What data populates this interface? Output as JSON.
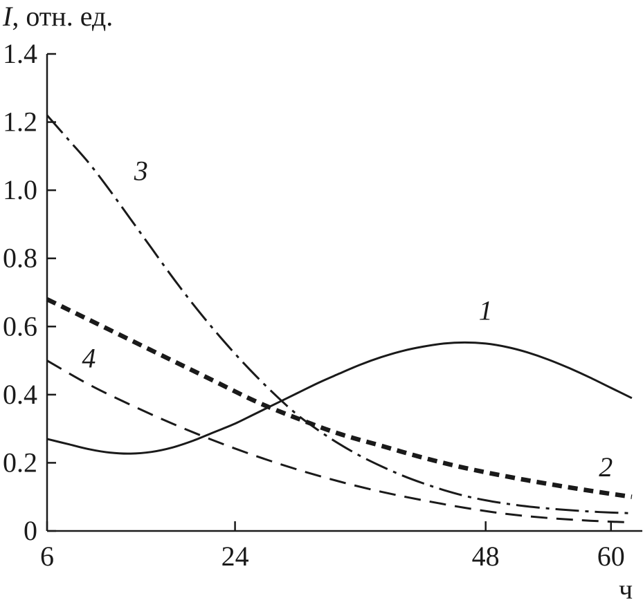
{
  "chart_data": {
    "type": "line",
    "title": "",
    "ylabel_italic": "I",
    "ylabel_rest": ", отн. ед.",
    "xlabel": "ч",
    "xlim": [
      6,
      63
    ],
    "ylim": [
      0,
      1.4
    ],
    "x_ticks": [
      6,
      24,
      48,
      60
    ],
    "x_tick_labels": [
      "6",
      "24",
      "48",
      "60"
    ],
    "y_ticks": [
      0,
      0.2,
      0.4,
      0.6,
      0.8,
      1.0,
      1.2,
      1.4
    ],
    "y_tick_labels": [
      "0",
      "0.2",
      "0.4",
      "0.6",
      "0.8",
      "1.0",
      "1.2",
      "1.4"
    ],
    "grid": false,
    "series": [
      {
        "name": "1",
        "style": "solid",
        "color": "#1a1a1a",
        "x": [
          6,
          8,
          10,
          12,
          14,
          16,
          18,
          20,
          22,
          24,
          26,
          28,
          30,
          32,
          34,
          36,
          38,
          40,
          42,
          44,
          46,
          48,
          50,
          52,
          54,
          56,
          58,
          60,
          62
        ],
        "y": [
          0.27,
          0.255,
          0.24,
          0.23,
          0.227,
          0.232,
          0.245,
          0.265,
          0.29,
          0.315,
          0.345,
          0.375,
          0.405,
          0.435,
          0.462,
          0.488,
          0.51,
          0.528,
          0.541,
          0.55,
          0.553,
          0.55,
          0.54,
          0.524,
          0.503,
          0.478,
          0.45,
          0.42,
          0.39
        ]
      },
      {
        "name": "2",
        "style": "bold-dashed",
        "color": "#1a1a1a",
        "x": [
          6,
          10,
          14,
          18,
          22,
          26,
          30,
          34,
          38,
          42,
          46,
          50,
          54,
          58,
          62
        ],
        "y": [
          0.68,
          0.62,
          0.56,
          0.5,
          0.44,
          0.38,
          0.33,
          0.285,
          0.25,
          0.215,
          0.185,
          0.16,
          0.138,
          0.118,
          0.1
        ]
      },
      {
        "name": "3",
        "style": "dash-dot",
        "color": "#1a1a1a",
        "x": [
          6,
          8,
          10,
          12,
          14,
          16,
          18,
          20,
          22,
          24,
          26,
          28,
          30,
          32,
          34,
          36,
          38,
          40,
          42,
          44,
          46,
          48,
          50,
          52,
          54,
          56,
          58,
          60,
          62
        ],
        "y": [
          1.22,
          1.15,
          1.08,
          1.0,
          0.915,
          0.83,
          0.745,
          0.665,
          0.59,
          0.52,
          0.455,
          0.395,
          0.34,
          0.295,
          0.255,
          0.22,
          0.19,
          0.163,
          0.14,
          0.12,
          0.103,
          0.09,
          0.08,
          0.072,
          0.066,
          0.061,
          0.057,
          0.054,
          0.052
        ]
      },
      {
        "name": "4",
        "style": "dashed",
        "color": "#1a1a1a",
        "x": [
          6,
          10,
          14,
          18,
          22,
          26,
          30,
          34,
          38,
          42,
          46,
          50,
          54,
          58,
          62
        ],
        "y": [
          0.5,
          0.43,
          0.37,
          0.315,
          0.265,
          0.22,
          0.18,
          0.145,
          0.115,
          0.09,
          0.068,
          0.05,
          0.038,
          0.03,
          0.025
        ]
      }
    ],
    "series_labels": [
      {
        "text": "1",
        "x": 48,
        "y": 0.62
      },
      {
        "text": "2",
        "x": 59.5,
        "y": 0.16
      },
      {
        "text": "3",
        "x": 15,
        "y": 1.03
      },
      {
        "text": "4",
        "x": 10,
        "y": 0.48
      }
    ]
  }
}
